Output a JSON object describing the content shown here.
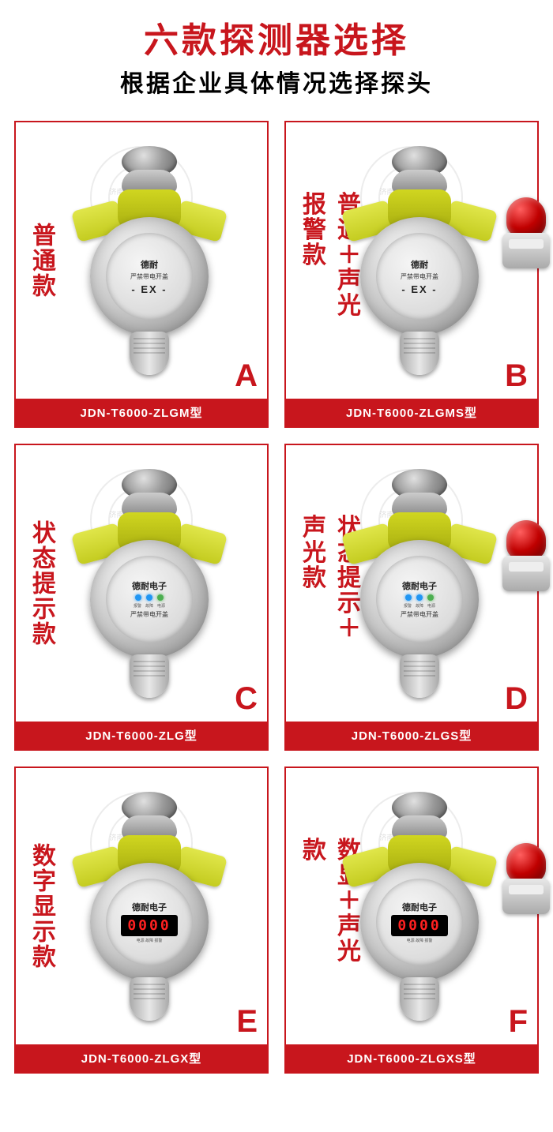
{
  "header": {
    "title": "六款探测器选择",
    "subtitle": "根据企业具体情况选择探头"
  },
  "colors": {
    "accent": "#c8161d",
    "yellow": "#d0d620",
    "beacon_red": "#c00000",
    "digital_bg": "#000000",
    "digital_fg": "#ff2020"
  },
  "device_face": {
    "brand_basic": "德耐",
    "brand_elec": "德耐电子",
    "warning": "严禁带电开盖",
    "ex": "- EX -",
    "led_labels": [
      "报警",
      "故障",
      "电源"
    ],
    "digital_readout": "0000",
    "small_labels": "电源  故障  报警"
  },
  "watermark": {
    "ring_top": "消防认证",
    "ring_text": "济南德耐电子有限公司",
    "ring_bottom": "监测专家"
  },
  "cards": [
    {
      "letter": "A",
      "type_label": "普通款",
      "model": "JDN-T6000-ZLGM型",
      "face": "basic",
      "beacon": false
    },
    {
      "letter": "B",
      "type_label": "普通＋声光报警款",
      "model": "JDN-T6000-ZLGMS型",
      "face": "basic",
      "beacon": true
    },
    {
      "letter": "C",
      "type_label": "状态提示款",
      "model": "JDN-T6000-ZLG型",
      "face": "status",
      "beacon": false
    },
    {
      "letter": "D",
      "type_label": "状态提示＋声光款",
      "model": "JDN-T6000-ZLGS型",
      "face": "status",
      "beacon": true
    },
    {
      "letter": "E",
      "type_label": "数字显示款",
      "model": "JDN-T6000-ZLGX型",
      "face": "digital",
      "beacon": false
    },
    {
      "letter": "F",
      "type_label": "数显＋声光款",
      "model": "JDN-T6000-ZLGXS型",
      "face": "digital",
      "beacon": true
    }
  ]
}
